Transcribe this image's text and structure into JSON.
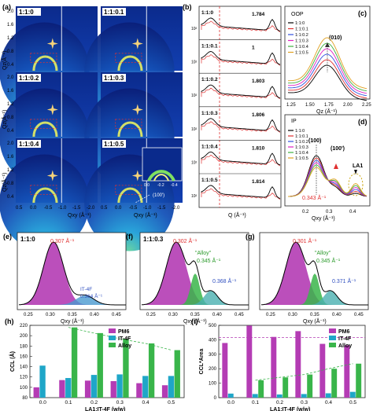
{
  "panel_a": {
    "label": "(a)",
    "ylabel": "Qz(Å⁻¹)",
    "xlabel": "Qxy (Å⁻¹)",
    "samples": [
      "1:1:0",
      "1:1:0.1",
      "1:1:0.2",
      "1:1:0.3",
      "1:1:0.4",
      "1:1:0.5"
    ],
    "yticks": [
      "2.0",
      "1.6",
      "1.2",
      "0.8",
      "0.4"
    ],
    "xticks_left": [
      "0.5",
      "0.0",
      "-0.5",
      "-1.0",
      "-1.5",
      "-2.0"
    ],
    "xticks_right": [
      "0.5",
      "0.0",
      "-0.5",
      "-1.0",
      "-1.5",
      "-2.0"
    ],
    "inset_ticks": [
      "0.0",
      "-0.2",
      "-0.4"
    ],
    "annotation": "(100')"
  },
  "panel_b": {
    "label": "(b)",
    "xlabel": "Q (Å⁻¹)",
    "ytick": "10²",
    "samples": [
      "1:1:0",
      "1:1:0.1",
      "1:1:0.2",
      "1:1:0.3",
      "1:1:0.4",
      "1:1:0.5"
    ],
    "peaks": [
      "1.784",
      "1",
      "1.803",
      "1.806",
      "1.810",
      "1.814"
    ]
  },
  "panel_c": {
    "label": "(c)",
    "title": "OOP",
    "peak_label": "(010)",
    "xlabel": "Qz (Å⁻¹)",
    "xticks": [
      "1.25",
      "1.50",
      "1.75",
      "2.00",
      "2.25"
    ],
    "legend": [
      "1:1:0",
      "1:1:0.1",
      "1:1:0.2",
      "1:1:0.3",
      "1:1:0.4",
      "1:1:0.5"
    ],
    "colors": [
      "#000000",
      "#e03030",
      "#3050e0",
      "#e020c0",
      "#40b040",
      "#e0a020"
    ]
  },
  "panel_d": {
    "label": "(d)",
    "title": "IP",
    "labels": [
      "(100)",
      "(100')",
      "LA1",
      "0.343 Å⁻¹"
    ],
    "xlabel": "Qxy (Å⁻¹)",
    "xticks": [
      "0.2",
      "0.3",
      "0.4"
    ],
    "legend": [
      "1:1:0",
      "1:1:0.1",
      "1:1:0.2",
      "1:1:0.3",
      "1:1:0.4",
      "1:1:0.5"
    ]
  },
  "panel_e": {
    "label": "(e)",
    "sample": "1:1:0",
    "peak1": "0.307 Å⁻¹",
    "peak2_name": "IT-4F",
    "peak2": "0.364 Å⁻¹",
    "xlabel": "Qxy (Å⁻¹)",
    "xticks": [
      "0.25",
      "0.30",
      "0.35",
      "0.40",
      "0.45"
    ]
  },
  "panel_f": {
    "label": "(f)",
    "sample": "1:1:0.3",
    "peak1": "0.302 Å⁻¹",
    "alloy": "\"Alloy\"",
    "peak_alloy": "0.345 Å⁻¹",
    "peak3": "0.368 Å⁻¹",
    "xlabel": "Qxy (Å⁻¹)",
    "xticks": [
      "0.25",
      "0.30",
      "0.35",
      "0.40",
      "0.45"
    ]
  },
  "panel_g": {
    "label": "(g)",
    "peak1": "0.301 Å⁻¹",
    "alloy": "\"Alloy\"",
    "peak_alloy": "0.345 Å⁻¹",
    "peak3": "0.371 Å⁻¹",
    "xlabel": "Qxy (Å⁻¹)",
    "xticks": [
      "0.25",
      "0.30",
      "0.35",
      "0.40",
      "0.45"
    ]
  },
  "chart_data": [
    {
      "type": "bar",
      "panel": "(h)",
      "categories": [
        "0.0",
        "0.1",
        "0.2",
        "0.3",
        "0.4",
        "0.5"
      ],
      "xlabel": "LA1:IT-4F (w/w)",
      "ylabel": "CCL (Å)",
      "ylim": [
        80,
        220
      ],
      "yticks": [
        "80",
        "100",
        "120",
        "140",
        "160",
        "180",
        "200",
        "220"
      ],
      "legend": [
        "PM6",
        "IT-4F",
        "Alloy"
      ],
      "colors": [
        "#b43cb4",
        "#1fa6c8",
        "#39b54a"
      ],
      "series": [
        {
          "name": "PM6",
          "values": [
            100,
            114,
            113,
            112,
            108,
            104
          ]
        },
        {
          "name": "IT-4F",
          "values": [
            142,
            118,
            124,
            125,
            122,
            122
          ]
        },
        {
          "name": "Alloy",
          "values": [
            null,
            216,
            205,
            194,
            185,
            172
          ]
        }
      ]
    },
    {
      "type": "bar",
      "panel": "(i)",
      "categories": [
        "0.0",
        "0.1",
        "0.2",
        "0.3",
        "0.4",
        "0.5"
      ],
      "xlabel": "LA1:IT-4F (w/w)",
      "ylabel": "CCL*Area",
      "ylim": [
        0,
        500
      ],
      "yticks": [
        "0",
        "100",
        "200",
        "300",
        "400",
        "500"
      ],
      "legend": [
        "PM6",
        "IT-4F",
        "Alloy"
      ],
      "colors": [
        "#b43cb4",
        "#1fa6c8",
        "#39b54a"
      ],
      "series": [
        {
          "name": "PM6",
          "values": [
            378,
            498,
            420,
            460,
            372,
            362
          ]
        },
        {
          "name": "IT-4F",
          "values": [
            28,
            25,
            22,
            25,
            30,
            40
          ]
        },
        {
          "name": "Alloy",
          "values": [
            null,
            120,
            140,
            160,
            200,
            235
          ]
        }
      ]
    }
  ]
}
